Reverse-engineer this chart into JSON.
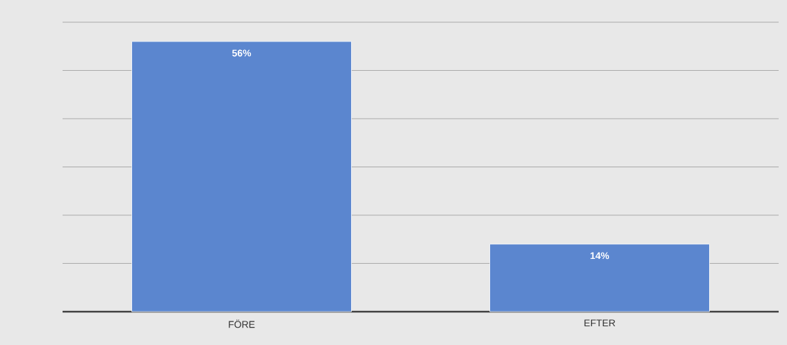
{
  "chart_data": {
    "type": "bar",
    "categories": [
      "FÖRE",
      "EFTER"
    ],
    "values": [
      56,
      14
    ],
    "color": "#5b86cf",
    "value_labels": [
      "56%",
      "14%"
    ],
    "ylim": [
      0,
      60
    ],
    "yticks": [
      {
        "value": 0,
        "label": null
      },
      {
        "value": 10,
        "label": null
      },
      {
        "value": 20,
        "label": null
      },
      {
        "value": 30,
        "label": null
      },
      {
        "value": 40,
        "label": null
      },
      {
        "value": 50,
        "label": null
      },
      {
        "value": 60,
        "label": null
      }
    ],
    "grid": "y",
    "tick_labels": "x"
  }
}
